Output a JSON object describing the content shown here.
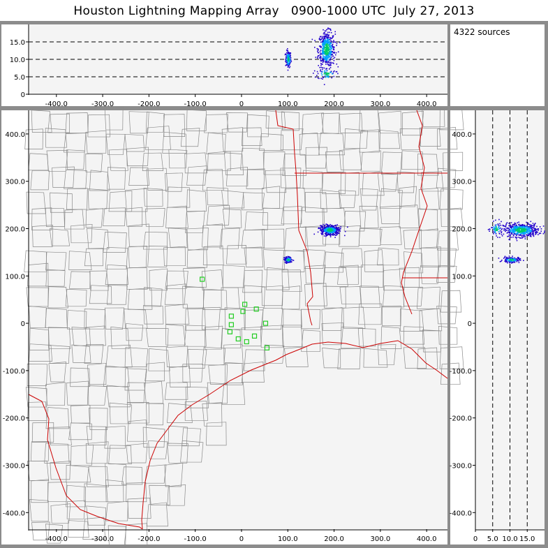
{
  "title": "Houston Lightning Mapping Array   0900-1000 UTC  July 27, 2013",
  "source_count_label": "4322 sources",
  "colors": {
    "frame": "#8c8c8c",
    "panel_bg": "#f4f4f4",
    "county_line": "#8a8a8a",
    "state_coast_line": "#cc0000",
    "station_marker": "#22cc22",
    "density_low": "#2200cc",
    "density_mid": "#00a0ff",
    "density_high": "#00cc66"
  },
  "chart_data": [
    {
      "id": "alt-x",
      "type": "scatter",
      "xlabel": "",
      "ylabel": "",
      "xlim": [
        -460,
        445
      ],
      "ylim": [
        0,
        20
      ],
      "x_ticks": [
        -400,
        -300,
        -200,
        -100,
        0,
        100,
        200,
        300,
        400
      ],
      "x_tick_labels": [
        "-400.0",
        "-300.0",
        "-200.0",
        "-100.0",
        "0",
        "100.0",
        "200.0",
        "300.0",
        "400.0"
      ],
      "y_ticks": [
        0,
        5,
        10,
        15
      ],
      "y_tick_labels": [
        "0",
        "5.0",
        "10.0",
        "15.0"
      ],
      "dashed_gridlines_y": [
        5,
        10,
        15
      ],
      "clusters": [
        {
          "x": 100,
          "y": 10.2,
          "sx": 3,
          "sy": 1.2,
          "n": 140
        },
        {
          "x": 183,
          "y": 13,
          "sx": 9,
          "sy": 2.5,
          "n": 520
        },
        {
          "x": 183,
          "y": 6,
          "sx": 10,
          "sy": 0.8,
          "n": 60
        }
      ]
    },
    {
      "id": "plan-view",
      "type": "scatter",
      "xlabel": "",
      "ylabel": "",
      "xlim": [
        -460,
        445
      ],
      "ylim": [
        -435,
        450
      ],
      "x_ticks": [
        -400,
        -300,
        -200,
        -100,
        0,
        100,
        200,
        300,
        400
      ],
      "x_tick_labels": [
        "-400.0",
        "-300.0",
        "-200.0",
        "-100.0",
        "0",
        "100.0",
        "200.0",
        "300.0",
        "400.0"
      ],
      "y_ticks": [
        -400,
        -300,
        -200,
        -100,
        0,
        100,
        200,
        300,
        400
      ],
      "y_tick_labels": [
        "-400.0",
        "-300.0",
        "-200.0",
        "-100.0",
        "0",
        "100.0",
        "200.0",
        "300.0",
        "400.0"
      ],
      "clusters": [
        {
          "x": 190,
          "y": 198,
          "sx": 10,
          "sy": 5,
          "n": 480
        },
        {
          "x": 100,
          "y": 135,
          "sx": 4,
          "sy": 3,
          "n": 150
        }
      ],
      "stations": [
        {
          "x": -85,
          "y": 93
        },
        {
          "x": -22,
          "y": 15
        },
        {
          "x": 7,
          "y": 40
        },
        {
          "x": 32,
          "y": 30
        },
        {
          "x": 3,
          "y": 25
        },
        {
          "x": -22,
          "y": -3
        },
        {
          "x": 52,
          "y": 0
        },
        {
          "x": -25,
          "y": -18
        },
        {
          "x": 28,
          "y": -27
        },
        {
          "x": -7,
          "y": -33
        },
        {
          "x": 11,
          "y": -39
        },
        {
          "x": 55,
          "y": -52
        }
      ]
    },
    {
      "id": "alt-y",
      "type": "scatter",
      "xlabel": "",
      "ylabel": "",
      "xlim": [
        0,
        20
      ],
      "ylim": [
        -435,
        450
      ],
      "x_ticks": [
        0,
        5,
        10,
        15
      ],
      "x_tick_labels": [
        "0",
        "5.0",
        "10.0",
        "15.0"
      ],
      "y_ticks": [
        -400,
        -300,
        -200,
        -100,
        0,
        100,
        200,
        300,
        400
      ],
      "y_tick_labels": [
        "-400.0",
        "-300.0",
        "-200.0",
        "-100.0",
        "0",
        "100.0",
        "200.0",
        "300.0",
        "400.0"
      ],
      "dashed_gridlines_x": [
        5,
        10,
        15
      ],
      "clusters": [
        {
          "x": 13,
          "y": 198,
          "sx": 2.5,
          "sy": 7,
          "n": 520
        },
        {
          "x": 6,
          "y": 200,
          "sx": 0.8,
          "sy": 7,
          "n": 60
        },
        {
          "x": 10.2,
          "y": 135,
          "sx": 1.2,
          "sy": 3,
          "n": 140
        }
      ]
    }
  ]
}
